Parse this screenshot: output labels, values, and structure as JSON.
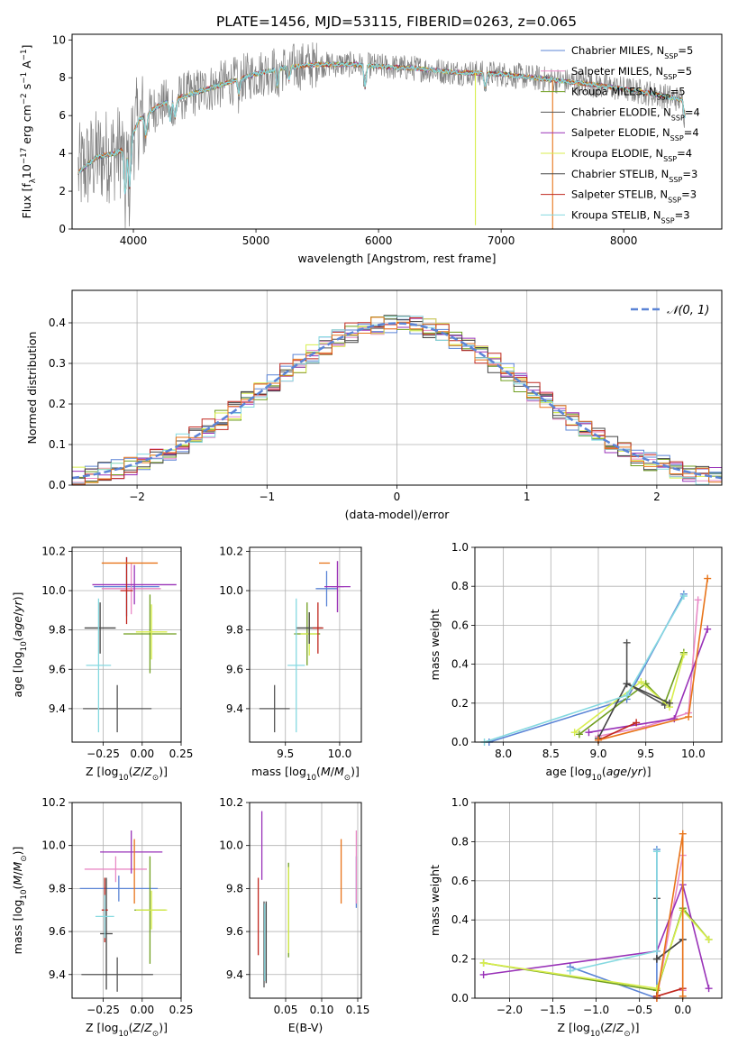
{
  "figure": {
    "title": "PLATE=1456, MJD=53115, FIBERID=0263, z=0.065"
  },
  "series": [
    {
      "name": "Chabrier MILES, N<sub>SSP</sub>=5",
      "color": "#5b84d6"
    },
    {
      "name": "Salpeter MILES, N<sub>SSP</sub>=5",
      "color": "#e98ac6"
    },
    {
      "name": "Kroupa MILES, N<sub>SSP</sub>=5",
      "color": "#6f9e1f"
    },
    {
      "name": "Chabrier ELODIE, N<sub>SSP</sub>=4",
      "color": "#555555"
    },
    {
      "name": "Salpeter ELODIE, N<sub>SSP</sub>=4",
      "color": "#9932b8"
    },
    {
      "name": "Kroupa ELODIE, N<sub>SSP</sub>=4",
      "color": "#d8ee4c"
    },
    {
      "name": "Chabrier STELIB, N<sub>SSP</sub>=3",
      "color": "#444444"
    },
    {
      "name": "Salpeter STELIB, N<sub>SSP</sub>=3",
      "color": "#c0271e"
    },
    {
      "name": "Kroupa STELIB, N<sub>SSP</sub>=3",
      "color": "#85d9e0"
    }
  ],
  "colors": {
    "data": "#808080",
    "gauss": "#5b84d6",
    "orange": "#e8741a",
    "grid": "#b0b0b0"
  },
  "chart_data": [
    {
      "id": "spectrum",
      "type": "line",
      "xlabel": "wavelength [Angstrom, rest frame]",
      "ylabel": "Flux [f<sub>λ</sub>10<sup>−17</sup> erg cm<sup>−2</sup> s<sup>−1</sup> A<sup>−1</sup>]",
      "xlim": [
        3500,
        8800
      ],
      "ylim": [
        0,
        10.3
      ],
      "xticks": [
        4000,
        5000,
        6000,
        7000,
        8000
      ],
      "yticks": [
        0,
        2,
        4,
        6,
        8,
        10
      ],
      "grid": false,
      "legend": "upper right",
      "continuum": [
        [
          3550,
          3.0
        ],
        [
          3700,
          3.8
        ],
        [
          3850,
          4.0
        ],
        [
          3950,
          4.3
        ],
        [
          4050,
          5.8
        ],
        [
          4200,
          6.5
        ],
        [
          4400,
          7.0
        ],
        [
          4600,
          7.4
        ],
        [
          4800,
          7.8
        ],
        [
          5000,
          8.2
        ],
        [
          5200,
          8.5
        ],
        [
          5500,
          8.7
        ],
        [
          5800,
          8.7
        ],
        [
          6000,
          8.6
        ],
        [
          6300,
          8.5
        ],
        [
          6600,
          8.3
        ],
        [
          7000,
          8.2
        ],
        [
          7400,
          7.9
        ],
        [
          7800,
          7.6
        ],
        [
          8200,
          7.2
        ],
        [
          8500,
          6.8
        ]
      ],
      "absorption": [
        [
          3934,
          2.6
        ],
        [
          3969,
          2.4
        ],
        [
          4102,
          1.2
        ],
        [
          4300,
          1.0
        ],
        [
          4340,
          1.0
        ],
        [
          4861,
          0.9
        ],
        [
          5175,
          1.0
        ],
        [
          5270,
          0.6
        ],
        [
          5890,
          1.2
        ],
        [
          6870,
          0.8
        ],
        [
          8498,
          0.9
        ],
        [
          8542,
          1.2
        ],
        [
          8662,
          1.0
        ]
      ],
      "model_spikes": [
        {
          "x": 6790,
          "y": 0.3
        },
        {
          "x": 7420,
          "y": 0.0
        }
      ]
    },
    {
      "id": "residual-histogram",
      "type": "bar",
      "xlabel": "(data-model)/error",
      "ylabel": "Normed distribution",
      "xlim": [
        -2.5,
        2.5
      ],
      "ylim": [
        0,
        0.48
      ],
      "xticks": [
        -2,
        -1,
        0,
        1,
        2
      ],
      "yticks": [
        0,
        0.1,
        0.2,
        0.3,
        0.4
      ],
      "grid": true,
      "legend": "upper right",
      "legend_label": "𝒩(0, 1)",
      "bin_width": 0.1
    },
    {
      "id": "age-vs-z",
      "type": "scatter",
      "xlabel": "Z [log<sub>10</sub>(<i>Z</i>/<i>Z</i><sub>⊙</sub>)]",
      "ylabel": "age  [log<sub>10</sub>(<i>age</i>/<i>yr</i>)]",
      "xlim": [
        -0.45,
        0.25
      ],
      "ylim": [
        9.23,
        10.22
      ],
      "xticks": [
        -0.25,
        0.0,
        0.25
      ],
      "xtick_labels": [
        "−0.25",
        "0.00",
        "0.25"
      ],
      "yticks": [
        9.4,
        9.6,
        9.8,
        10.0,
        10.2
      ],
      "grid": true,
      "errorbars": [
        {
          "s": 0,
          "x": -0.1,
          "y": 10.02,
          "xe": 0.21,
          "ye": 0.15
        },
        {
          "s": 1,
          "x": -0.07,
          "y": 10.01,
          "xe": 0.19,
          "ye": 0.13
        },
        {
          "s": 2,
          "x": 0.05,
          "y": 9.78,
          "xe": 0.17,
          "ye": 0.2
        },
        {
          "s": 3,
          "x": -0.16,
          "y": 9.4,
          "xe": 0.22,
          "ye": 0.12
        },
        {
          "s": 4,
          "x": -0.05,
          "y": 10.03,
          "xe": 0.27,
          "ye": 0.1
        },
        {
          "s": 5,
          "x": 0.06,
          "y": 9.79,
          "xe": 0.1,
          "ye": 0.14
        },
        {
          "s": 6,
          "x": -0.27,
          "y": 9.81,
          "xe": 0.1,
          "ye": 0.13
        },
        {
          "s": 7,
          "x": -0.1,
          "y": 10.0,
          "xe": 0.04,
          "ye": 0.17
        },
        {
          "s": 8,
          "x": -0.28,
          "y": 9.62,
          "xe": 0.08,
          "ye": 0.34
        }
      ],
      "extra": [
        {
          "color": "orange",
          "x": -0.08,
          "y": 10.14,
          "xe": 0.18,
          "ye": 0.0
        }
      ]
    },
    {
      "id": "age-vs-mass",
      "type": "scatter",
      "xlabel": "mass [log<sub>10</sub>(<i>M</i>/<i>M</i><sub>⊙</sub>)]",
      "ylabel": "",
      "xlim": [
        9.17,
        10.2
      ],
      "ylim": [
        9.23,
        10.22
      ],
      "xticks": [
        9.5,
        10.0
      ],
      "xtick_labels": [
        "9.5",
        "10.0"
      ],
      "yticks": [
        9.4,
        9.6,
        9.8,
        10.0,
        10.2
      ],
      "grid": true,
      "errorbars": [
        {
          "s": 0,
          "x": 9.88,
          "y": 10.01,
          "xe": 0.1,
          "ye": 0.09
        },
        {
          "s": 1,
          "x": 9.98,
          "y": 10.02,
          "xe": 0.06,
          "ye": 0.13
        },
        {
          "s": 2,
          "x": 9.7,
          "y": 9.78,
          "xe": 0.12,
          "ye": 0.16
        },
        {
          "s": 3,
          "x": 9.4,
          "y": 9.4,
          "xe": 0.14,
          "ye": 0.12
        },
        {
          "s": 4,
          "x": 9.98,
          "y": 10.02,
          "xe": 0.12,
          "ye": 0.13
        },
        {
          "s": 5,
          "x": 9.72,
          "y": 9.78,
          "xe": 0.08,
          "ye": 0.11
        },
        {
          "s": 6,
          "x": 9.72,
          "y": 9.81,
          "xe": 0.12,
          "ye": 0.08
        },
        {
          "s": 7,
          "x": 9.8,
          "y": 9.81,
          "xe": 0.05,
          "ye": 0.13
        },
        {
          "s": 8,
          "x": 9.6,
          "y": 9.62,
          "xe": 0.08,
          "ye": 0.34
        }
      ],
      "extra": [
        {
          "color": "orange",
          "x": 9.86,
          "y": 10.14,
          "xe": 0.05,
          "ye": 0.0
        }
      ]
    },
    {
      "id": "weight-vs-age",
      "type": "line",
      "xlabel": "age  [log<sub>10</sub>(<i>age</i>/<i>yr</i>)]",
      "ylabel": "mass weight",
      "xlim": [
        7.7,
        10.3
      ],
      "ylim": [
        0,
        1.0
      ],
      "xticks": [
        8.0,
        8.5,
        9.0,
        9.5,
        10.0
      ],
      "xtick_labels": [
        "8.0",
        "8.5",
        "9.0",
        "9.5",
        "10.0"
      ],
      "yticks": [
        0,
        0.2,
        0.4,
        0.6,
        0.8,
        1.0
      ],
      "grid": true,
      "series_points": [
        {
          "s": 0,
          "points": [
            [
              7.85,
              0.0
            ],
            [
              9.3,
              0.22
            ],
            [
              9.9,
              0.76
            ]
          ]
        },
        {
          "s": 1,
          "points": [
            [
              9.0,
              0.03
            ],
            [
              9.5,
              0.08
            ],
            [
              9.95,
              0.15
            ],
            [
              10.05,
              0.73
            ]
          ]
        },
        {
          "s": 2,
          "points": [
            [
              8.8,
              0.04
            ],
            [
              9.5,
              0.3
            ],
            [
              9.7,
              0.2
            ],
            [
              9.9,
              0.46
            ]
          ]
        },
        {
          "s": 3,
          "points": [
            [
              9.3,
              0.51
            ],
            [
              9.3,
              0.3
            ],
            [
              9.7,
              0.19
            ]
          ]
        },
        {
          "s": 4,
          "points": [
            [
              8.9,
              0.05
            ],
            [
              9.8,
              0.12
            ],
            [
              10.15,
              0.58
            ]
          ]
        },
        {
          "s": 5,
          "points": [
            [
              8.75,
              0.05
            ],
            [
              9.45,
              0.31
            ],
            [
              9.75,
              0.18
            ],
            [
              9.9,
              0.45
            ]
          ]
        },
        {
          "s": 6,
          "points": [
            [
              9.0,
              0.02
            ],
            [
              9.3,
              0.3
            ],
            [
              9.75,
              0.2
            ]
          ]
        },
        {
          "s": 7,
          "points": [
            [
              9.0,
              0.01
            ],
            [
              9.4,
              0.1
            ]
          ]
        },
        {
          "s": 8,
          "points": [
            [
              7.8,
              0.0
            ],
            [
              9.3,
              0.24
            ],
            [
              9.9,
              0.75
            ]
          ]
        },
        {
          "color": "orange",
          "points": [
            [
              9.0,
              0.01
            ],
            [
              9.95,
              0.13
            ],
            [
              10.15,
              0.84
            ]
          ]
        }
      ]
    },
    {
      "id": "mass-vs-z",
      "type": "scatter",
      "xlabel": "Z [log<sub>10</sub>(<i>Z</i>/<i>Z</i><sub>⊙</sub>)]",
      "ylabel": "mass [log<sub>10</sub>(<i>M</i>/<i>M</i><sub>⊙</sub>)]",
      "xlim": [
        -0.45,
        0.25
      ],
      "ylim": [
        9.29,
        10.2
      ],
      "xticks": [
        -0.25,
        0.0,
        0.25
      ],
      "xtick_labels": [
        "−0.25",
        "0.00",
        "0.25"
      ],
      "yticks": [
        9.4,
        9.6,
        9.8,
        10.0,
        10.2
      ],
      "grid": true,
      "errorbars": [
        {
          "s": 0,
          "x": -0.15,
          "y": 9.8,
          "xe": 0.25,
          "ye": 0.06
        },
        {
          "s": 1,
          "x": -0.17,
          "y": 9.89,
          "xe": 0.2,
          "ye": 0.06
        },
        {
          "s": 2,
          "x": 0.05,
          "y": 9.7,
          "xe": 0.1,
          "ye": 0.25
        },
        {
          "s": 3,
          "x": -0.16,
          "y": 9.4,
          "xe": 0.23,
          "ye": 0.08
        },
        {
          "s": 4,
          "x": -0.07,
          "y": 9.97,
          "xe": 0.2,
          "ye": 0.1
        },
        {
          "s": 5,
          "x": 0.06,
          "y": 9.7,
          "xe": 0.1,
          "ye": 0.09
        },
        {
          "s": 6,
          "x": -0.23,
          "y": 9.59,
          "xe": 0.04,
          "ye": 0.26
        },
        {
          "s": 7,
          "x": -0.24,
          "y": 9.7,
          "xe": 0.02,
          "ye": 0.15
        },
        {
          "s": 8,
          "x": -0.24,
          "y": 9.67,
          "xe": 0.06,
          "ye": 0.1
        }
      ],
      "extra": [
        {
          "color": "orange",
          "x": -0.05,
          "y": 9.88,
          "xe": 0.0,
          "ye": 0.15
        }
      ]
    },
    {
      "id": "mass-vs-ebv",
      "type": "scatter",
      "xlabel": "E(B-V)",
      "ylabel": "",
      "xlim": [
        0.0,
        0.155
      ],
      "ylim": [
        9.29,
        10.2
      ],
      "xticks": [
        0.05,
        0.1,
        0.15
      ],
      "xtick_labels": [
        "0.05",
        "0.10",
        "0.15"
      ],
      "yticks": [
        9.4,
        9.6,
        9.8,
        10.0,
        10.2
      ],
      "grid": true,
      "errorbars": [
        {
          "s": 0,
          "x": 0.148,
          "y": 9.83,
          "xe": 0.0,
          "ye": 0.12
        },
        {
          "s": 1,
          "x": 0.148,
          "y": 9.9,
          "xe": 0.0,
          "ye": 0.17
        },
        {
          "s": 2,
          "x": 0.054,
          "y": 9.7,
          "xe": 0.0,
          "ye": 0.22
        },
        {
          "s": 3,
          "x": 0.02,
          "y": 9.54,
          "xe": 0.0,
          "ye": 0.2
        },
        {
          "s": 4,
          "x": 0.017,
          "y": 10.0,
          "xe": 0.0,
          "ye": 0.16
        },
        {
          "s": 5,
          "x": 0.054,
          "y": 9.7,
          "xe": 0.0,
          "ye": 0.2
        },
        {
          "s": 6,
          "x": 0.023,
          "y": 9.55,
          "xe": 0.0,
          "ye": 0.19
        },
        {
          "s": 7,
          "x": 0.012,
          "y": 9.67,
          "xe": 0.0,
          "ye": 0.18
        },
        {
          "s": 8,
          "x": 0.021,
          "y": 9.55,
          "xe": 0.0,
          "ye": 0.18
        }
      ],
      "extra": [
        {
          "color": "orange",
          "x": 0.127,
          "y": 9.88,
          "xe": 0.0,
          "ye": 0.15
        }
      ]
    },
    {
      "id": "weight-vs-z",
      "type": "line",
      "xlabel": "Z [log<sub>10</sub>(<i>Z</i>/<i>Z</i><sub>⊙</sub>)]",
      "ylabel": "mass weight",
      "xlim": [
        -2.4,
        0.45
      ],
      "ylim": [
        0,
        1.0
      ],
      "xticks": [
        -2.0,
        -1.5,
        -1.0,
        -0.5,
        0.0
      ],
      "xtick_labels": [
        "−2.0",
        "−1.5",
        "−1.0",
        "−0.5",
        "0.0"
      ],
      "yticks": [
        0,
        0.2,
        0.4,
        0.6,
        0.8,
        1.0
      ],
      "grid": true,
      "series_points": [
        {
          "s": 0,
          "points": [
            [
              -1.3,
              0.16
            ],
            [
              -0.3,
              0.0
            ],
            [
              -0.3,
              0.76
            ]
          ]
        },
        {
          "s": 1,
          "points": [
            [
              -0.3,
              0.0
            ],
            [
              0.0,
              0.73
            ],
            [
              0.0,
              0.04
            ]
          ]
        },
        {
          "s": 2,
          "points": [
            [
              -2.3,
              0.18
            ],
            [
              -0.3,
              0.04
            ],
            [
              0.0,
              0.46
            ],
            [
              0.3,
              0.3
            ]
          ]
        },
        {
          "s": 3,
          "points": [
            [
              -0.3,
              0.51
            ],
            [
              -0.3,
              0.2
            ],
            [
              0.0,
              0.3
            ]
          ]
        },
        {
          "s": 4,
          "points": [
            [
              -2.3,
              0.12
            ],
            [
              -0.3,
              0.24
            ],
            [
              0.0,
              0.58
            ],
            [
              0.3,
              0.05
            ]
          ]
        },
        {
          "s": 5,
          "points": [
            [
              -2.3,
              0.18
            ],
            [
              -0.3,
              0.05
            ],
            [
              0.0,
              0.45
            ],
            [
              0.3,
              0.3
            ]
          ]
        },
        {
          "s": 6,
          "points": [
            [
              -0.3,
              0.2
            ],
            [
              0.0,
              0.3
            ]
          ]
        },
        {
          "s": 7,
          "points": [
            [
              -0.3,
              0.01
            ],
            [
              0.0,
              0.05
            ]
          ]
        },
        {
          "s": 8,
          "points": [
            [
              -0.3,
              0.75
            ],
            [
              -0.3,
              0.24
            ],
            [
              -1.3,
              0.14
            ]
          ]
        },
        {
          "color": "orange",
          "points": [
            [
              -0.3,
              0.0
            ],
            [
              0.0,
              0.84
            ],
            [
              0.0,
              0.01
            ]
          ]
        }
      ]
    }
  ]
}
